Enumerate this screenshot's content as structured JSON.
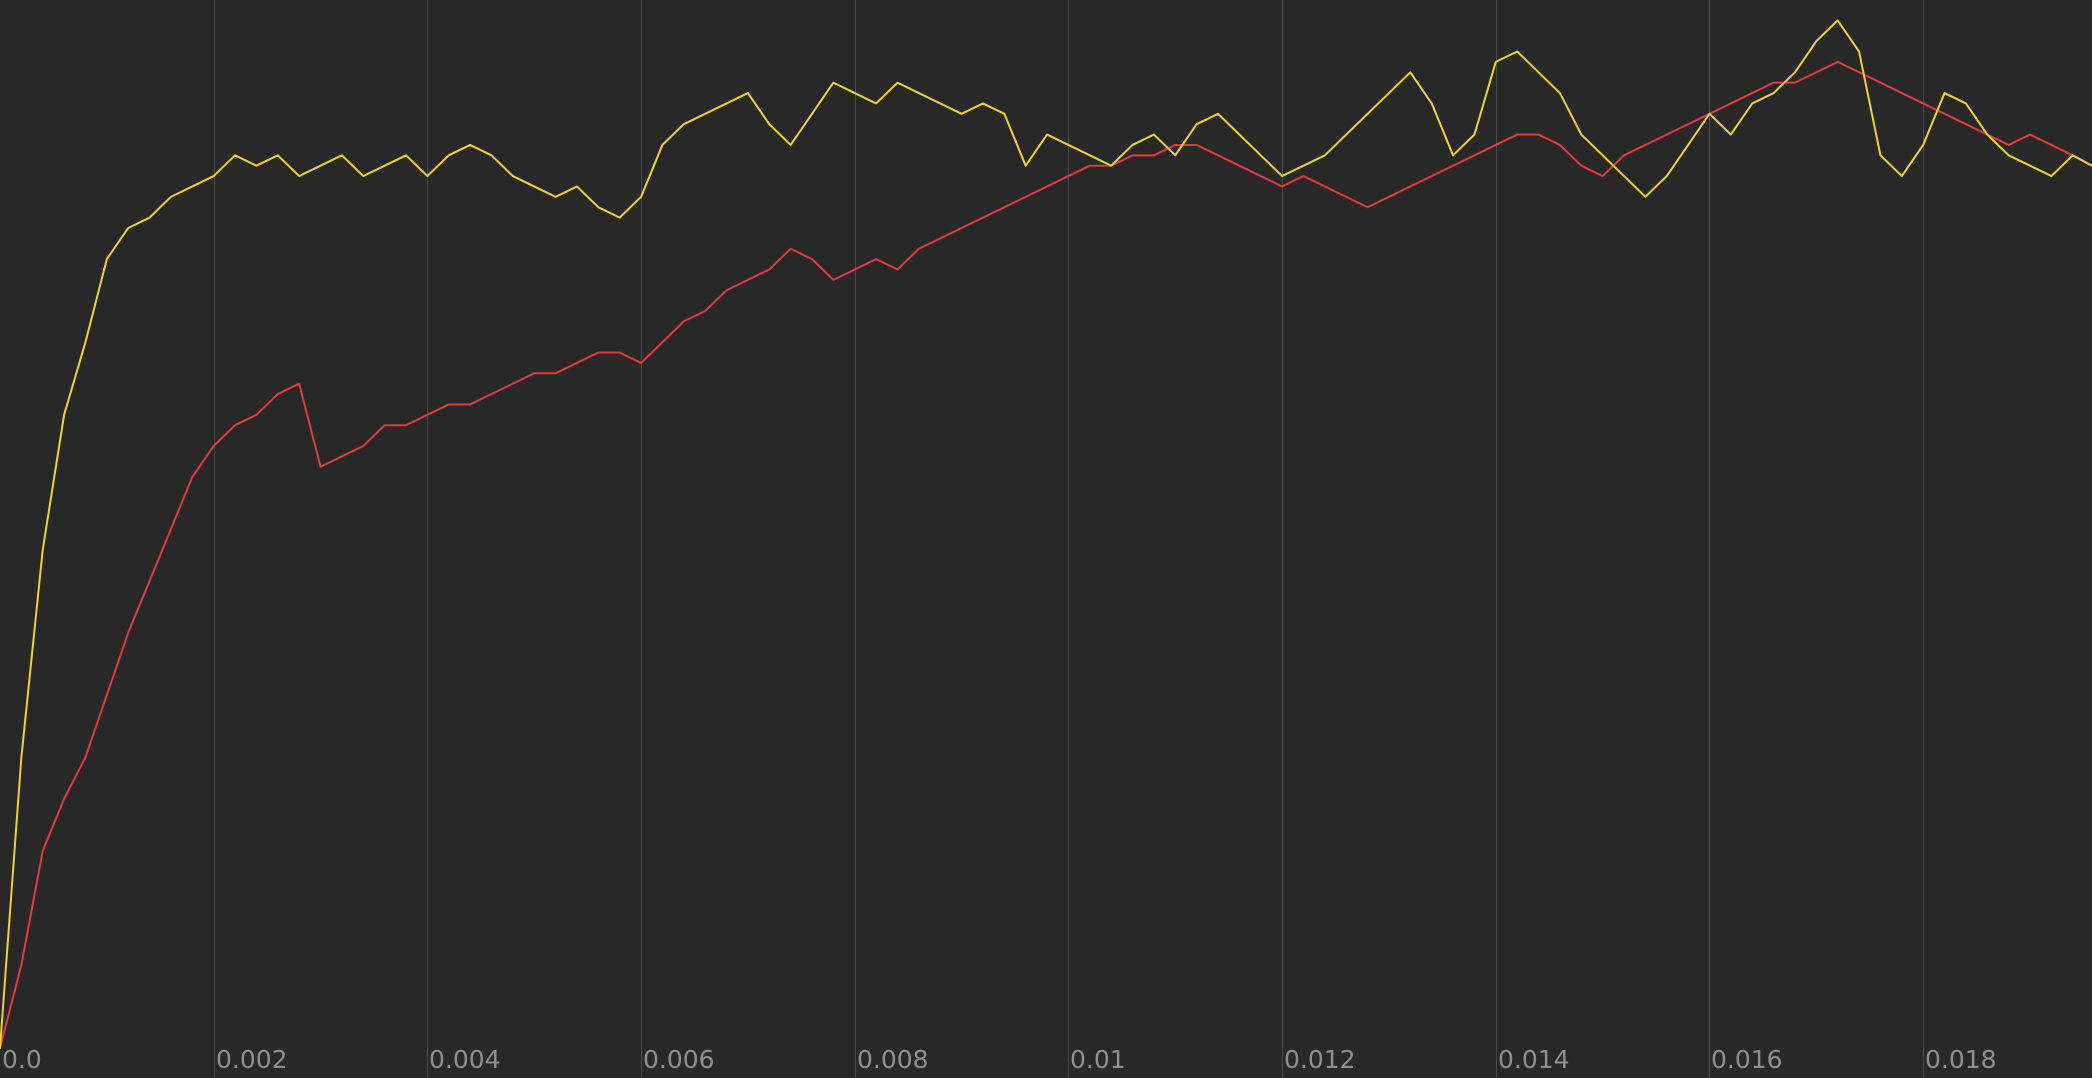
{
  "chart_data": {
    "type": "line",
    "title": "",
    "xlabel": "",
    "ylabel": "",
    "xlim": [
      0.0,
      0.01958
    ],
    "ylim": [
      0.0,
      1.0
    ],
    "grid": {
      "vertical": true,
      "horizontal": false
    },
    "legend": "none",
    "colors": {
      "background": "#282828",
      "grid": "#4a4a4a",
      "tick_text": "#8f8f8f"
    },
    "x_ticks": [
      0.0,
      0.002,
      0.004,
      0.006,
      0.008,
      0.01,
      0.012,
      0.014,
      0.016,
      0.018
    ],
    "x_tick_labels": [
      "0.0",
      "0.002",
      "0.004",
      "0.006",
      "0.008",
      "0.01",
      "0.012",
      "0.014",
      "0.016",
      "0.018"
    ],
    "series": [
      {
        "color": "#e03a3a",
        "x": [
          0.0,
          0.0002,
          0.0004,
          0.0006,
          0.0008,
          0.001,
          0.0012,
          0.0014,
          0.0016,
          0.0018,
          0.002,
          0.0022,
          0.0024,
          0.0026,
          0.0028,
          0.003,
          0.0032,
          0.0034,
          0.0036,
          0.0038,
          0.004,
          0.0042,
          0.0044,
          0.0046,
          0.0048,
          0.005,
          0.0052,
          0.0054,
          0.0056,
          0.0058,
          0.006,
          0.0062,
          0.0064,
          0.0066,
          0.0068,
          0.007,
          0.0072,
          0.0074,
          0.0076,
          0.0078,
          0.008,
          0.0082,
          0.0084,
          0.0086,
          0.0088,
          0.009,
          0.0092,
          0.0094,
          0.0096,
          0.0098,
          0.01,
          0.0102,
          0.0104,
          0.0106,
          0.0108,
          0.011,
          0.0112,
          0.0114,
          0.0116,
          0.0118,
          0.012,
          0.0122,
          0.0124,
          0.0126,
          0.0128,
          0.013,
          0.0132,
          0.0134,
          0.0136,
          0.0138,
          0.014,
          0.0142,
          0.0144,
          0.0146,
          0.0148,
          0.015,
          0.0152,
          0.0154,
          0.0156,
          0.0158,
          0.016,
          0.0162,
          0.0164,
          0.0166,
          0.0168,
          0.017,
          0.0172,
          0.0174,
          0.0176,
          0.0178,
          0.018,
          0.0182,
          0.0184,
          0.0186,
          0.0188,
          0.019,
          0.0192,
          0.0194,
          0.01958
        ],
        "y": [
          0.0,
          0.08,
          0.19,
          0.24,
          0.28,
          0.34,
          0.4,
          0.45,
          0.5,
          0.55,
          0.58,
          0.6,
          0.61,
          0.63,
          0.64,
          0.56,
          0.57,
          0.58,
          0.6,
          0.6,
          0.61,
          0.62,
          0.62,
          0.63,
          0.64,
          0.65,
          0.65,
          0.66,
          0.67,
          0.67,
          0.66,
          0.68,
          0.7,
          0.71,
          0.73,
          0.74,
          0.75,
          0.77,
          0.76,
          0.74,
          0.75,
          0.76,
          0.75,
          0.77,
          0.78,
          0.79,
          0.8,
          0.81,
          0.82,
          0.83,
          0.84,
          0.85,
          0.85,
          0.86,
          0.86,
          0.87,
          0.87,
          0.86,
          0.85,
          0.84,
          0.83,
          0.84,
          0.83,
          0.82,
          0.81,
          0.82,
          0.83,
          0.84,
          0.85,
          0.86,
          0.87,
          0.88,
          0.88,
          0.87,
          0.85,
          0.84,
          0.86,
          0.87,
          0.88,
          0.89,
          0.9,
          0.91,
          0.92,
          0.93,
          0.93,
          0.94,
          0.95,
          0.94,
          0.93,
          0.92,
          0.91,
          0.9,
          0.89,
          0.88,
          0.87,
          0.88,
          0.87,
          0.86,
          0.85
        ]
      },
      {
        "color": "#f2d22a",
        "x": [
          0.0,
          0.0002,
          0.0004,
          0.0006,
          0.0008,
          0.001,
          0.0012,
          0.0014,
          0.0016,
          0.0018,
          0.002,
          0.0022,
          0.0024,
          0.0026,
          0.0028,
          0.003,
          0.0032,
          0.0034,
          0.0036,
          0.0038,
          0.004,
          0.0042,
          0.0044,
          0.0046,
          0.0048,
          0.005,
          0.0052,
          0.0054,
          0.0056,
          0.0058,
          0.006,
          0.0062,
          0.0064,
          0.0066,
          0.0068,
          0.007,
          0.0072,
          0.0074,
          0.0076,
          0.0078,
          0.008,
          0.0082,
          0.0084,
          0.0086,
          0.0088,
          0.009,
          0.0092,
          0.0094,
          0.0096,
          0.0098,
          0.01,
          0.0102,
          0.0104,
          0.0106,
          0.0108,
          0.011,
          0.0112,
          0.0114,
          0.0116,
          0.0118,
          0.012,
          0.0122,
          0.0124,
          0.0126,
          0.0128,
          0.013,
          0.0132,
          0.0134,
          0.0136,
          0.0138,
          0.014,
          0.0142,
          0.0144,
          0.0146,
          0.0148,
          0.015,
          0.0152,
          0.0154,
          0.0156,
          0.0158,
          0.016,
          0.0162,
          0.0164,
          0.0166,
          0.0168,
          0.017,
          0.0172,
          0.0174,
          0.0176,
          0.0178,
          0.018,
          0.0182,
          0.0184,
          0.0186,
          0.0188,
          0.019,
          0.0192,
          0.0194,
          0.01958
        ],
        "y": [
          0.0,
          0.28,
          0.48,
          0.61,
          0.68,
          0.76,
          0.79,
          0.8,
          0.82,
          0.83,
          0.84,
          0.86,
          0.85,
          0.86,
          0.84,
          0.85,
          0.86,
          0.84,
          0.85,
          0.86,
          0.84,
          0.86,
          0.87,
          0.86,
          0.84,
          0.83,
          0.82,
          0.83,
          0.81,
          0.8,
          0.82,
          0.87,
          0.89,
          0.9,
          0.91,
          0.92,
          0.89,
          0.87,
          0.9,
          0.93,
          0.92,
          0.91,
          0.93,
          0.92,
          0.91,
          0.9,
          0.91,
          0.9,
          0.85,
          0.88,
          0.87,
          0.86,
          0.85,
          0.87,
          0.88,
          0.86,
          0.89,
          0.9,
          0.88,
          0.86,
          0.84,
          0.85,
          0.86,
          0.88,
          0.9,
          0.92,
          0.94,
          0.91,
          0.86,
          0.88,
          0.95,
          0.96,
          0.94,
          0.92,
          0.88,
          0.86,
          0.84,
          0.82,
          0.84,
          0.87,
          0.9,
          0.88,
          0.91,
          0.92,
          0.94,
          0.97,
          0.99,
          0.96,
          0.86,
          0.84,
          0.87,
          0.92,
          0.91,
          0.88,
          0.86,
          0.85,
          0.84,
          0.86,
          0.85
        ]
      }
    ]
  }
}
